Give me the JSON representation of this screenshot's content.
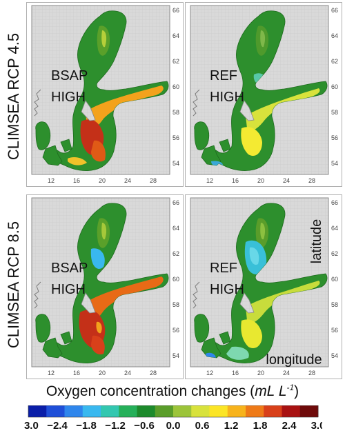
{
  "rows": [
    {
      "label": "CLIMSEA RCP 4.5",
      "panels": [
        {
          "scenario": "BSAP",
          "level": "HIGH",
          "style": "bsap45"
        },
        {
          "scenario": "REF",
          "level": "HIGH",
          "style": "ref45"
        }
      ]
    },
    {
      "label": "CLIMSEA RCP 8.5",
      "panels": [
        {
          "scenario": "BSAP",
          "level": "HIGH",
          "style": "bsap85"
        },
        {
          "scenario": "REF",
          "level": "HIGH",
          "style": "ref85"
        }
      ]
    }
  ],
  "axes": {
    "longitude_ticks": [
      "12",
      "16",
      "20",
      "24",
      "28"
    ],
    "latitude_ticks": [
      "66",
      "64",
      "62",
      "60",
      "58",
      "56",
      "54"
    ],
    "longitude_label": "longitude",
    "latitude_label": "latitude"
  },
  "colorbar": {
    "title_text": "Oxygen concentration changes (",
    "title_unit": "mL L",
    "title_sup": "-1",
    "title_close": ")",
    "ticks": [
      "−3.0",
      "−2.4",
      "−1.8",
      "−1.2",
      "−0.6",
      "0.0",
      "0.6",
      "1.2",
      "1.8",
      "2.4",
      "3.0"
    ],
    "colors": [
      "#0a1ea8",
      "#1f4fd8",
      "#2f86ec",
      "#39b8ef",
      "#33c7b0",
      "#26b05a",
      "#1d8a2c",
      "#5a9d2a",
      "#9cc43a",
      "#d8e23c",
      "#fbe526",
      "#f7b31c",
      "#ee7a18",
      "#d8401a",
      "#a81212",
      "#6e0a0a"
    ]
  }
}
